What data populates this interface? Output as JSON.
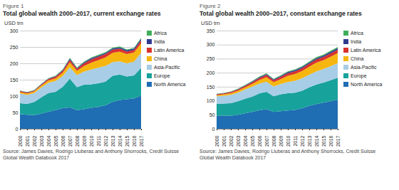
{
  "chart_data": [
    {
      "type": "area",
      "stacked": true,
      "grid": true,
      "legend": "right",
      "figure": "Figure 1",
      "title": "Total global wealth 2000–2017, current exchange rates",
      "y_label": "USD trn",
      "source": "Source: James Davies, Rodrigo Lluberas and Anthony Shorrocks, Credit Suisse Global Wealth Databook 2017",
      "x": [
        2000,
        2001,
        2002,
        2003,
        2004,
        2005,
        2006,
        2007,
        2008,
        2009,
        2010,
        2011,
        2012,
        2013,
        2014,
        2015,
        2016,
        2017
      ],
      "xlim": [
        2000,
        2017
      ],
      "xticks": [
        2000,
        2001,
        2002,
        2003,
        2004,
        2005,
        2006,
        2007,
        2008,
        2009,
        2010,
        2011,
        2012,
        2013,
        2014,
        2015,
        2016,
        2017
      ],
      "ylim": [
        0,
        300
      ],
      "yticks": [
        0,
        50,
        100,
        150,
        200,
        250,
        300
      ],
      "series": [
        {
          "name": "North America",
          "color": "#1f6db3",
          "values": [
            45,
            43,
            42,
            46,
            52,
            57,
            63,
            65,
            57,
            60,
            64,
            67,
            72,
            82,
            88,
            90,
            93,
            101
          ]
        },
        {
          "name": "Europe",
          "color": "#18a29c",
          "values": [
            33,
            33,
            40,
            50,
            57,
            56,
            65,
            88,
            70,
            75,
            72,
            72,
            72,
            80,
            78,
            70,
            70,
            85
          ]
        },
        {
          "name": "Asia-Pacific",
          "color": "#a8cde6",
          "values": [
            30,
            27,
            27,
            30,
            32,
            33,
            33,
            35,
            37,
            40,
            45,
            48,
            48,
            42,
            40,
            40,
            42,
            46
          ]
        },
        {
          "name": "China",
          "color": "#f6b60f",
          "values": [
            4,
            4.5,
            5,
            6,
            7,
            8,
            10,
            15,
            13,
            17,
            21,
            23,
            26,
            28,
            30,
            28,
            28,
            29
          ]
        },
        {
          "name": "Latin America",
          "color": "#d8322c",
          "values": [
            3,
            3,
            2.5,
            3,
            4,
            5,
            6,
            8,
            6,
            8,
            10,
            10,
            10,
            10,
            9,
            8,
            8,
            9
          ]
        },
        {
          "name": "India",
          "color": "#2f3a8f",
          "values": [
            1,
            1,
            1,
            1.5,
            1.5,
            2,
            2.5,
            3.5,
            2.5,
            3,
            3.5,
            3.5,
            3.5,
            3.5,
            4,
            4,
            4,
            5
          ]
        },
        {
          "name": "Africa",
          "color": "#3fae5a",
          "values": [
            1,
            1,
            1,
            1.2,
            1.5,
            1.7,
            2,
            2.3,
            2,
            2.2,
            2.5,
            2.5,
            2.5,
            2.5,
            2.5,
            2.3,
            2.3,
            2.5
          ]
        }
      ]
    },
    {
      "type": "area",
      "stacked": true,
      "grid": true,
      "legend": "right",
      "figure": "Figure 2",
      "title": "Total global wealth 2000–2017, constant exchange rates",
      "y_label": "USD trn",
      "source": "Source: James Davies, Rodrigo Lluberas and Anthony Shorrocks, Credit Suisse Global Wealth Databook 2017",
      "x": [
        2000,
        2001,
        2002,
        2003,
        2004,
        2005,
        2006,
        2007,
        2008,
        2009,
        2010,
        2011,
        2012,
        2013,
        2014,
        2015,
        2016,
        2017
      ],
      "xlim": [
        2000,
        2017
      ],
      "xticks": [
        2000,
        2001,
        2002,
        2003,
        2004,
        2005,
        2006,
        2007,
        2008,
        2009,
        2010,
        2011,
        2012,
        2013,
        2014,
        2015,
        2016,
        2017
      ],
      "ylim": [
        0,
        350
      ],
      "yticks": [
        0,
        50,
        100,
        150,
        200,
        250,
        300,
        350
      ],
      "series": [
        {
          "name": "North America",
          "color": "#1f6db3",
          "values": [
            47,
            47,
            46,
            50,
            55,
            60,
            66,
            70,
            60,
            63,
            65,
            67,
            73,
            82,
            88,
            93,
            98,
            104
          ]
        },
        {
          "name": "Europe",
          "color": "#18a29c",
          "values": [
            42,
            43,
            45,
            48,
            52,
            55,
            60,
            62,
            56,
            60,
            62,
            62,
            63,
            66,
            70,
            72,
            75,
            78
          ]
        },
        {
          "name": "Asia-Pacific",
          "color": "#a8cde6",
          "values": [
            27,
            28,
            30,
            31,
            33,
            35,
            35,
            36,
            35,
            37,
            40,
            42,
            44,
            45,
            47,
            48,
            50,
            52
          ]
        },
        {
          "name": "China",
          "color": "#f6b60f",
          "values": [
            4,
            5,
            6,
            7,
            8,
            10,
            13,
            16,
            15,
            17,
            22,
            24,
            26,
            28,
            31,
            32,
            34,
            36
          ]
        },
        {
          "name": "Latin America",
          "color": "#d8322c",
          "values": [
            3,
            3,
            4,
            4,
            5,
            6,
            7,
            8,
            7,
            8,
            9,
            10,
            10,
            11,
            11,
            11,
            12,
            12
          ]
        },
        {
          "name": "India",
          "color": "#2f3a8f",
          "values": [
            1,
            1,
            1,
            1.5,
            2,
            2.5,
            3,
            3.5,
            3,
            3.5,
            4,
            4,
            4.5,
            4.5,
            5,
            5,
            5.5,
            6
          ]
        },
        {
          "name": "Africa",
          "color": "#3fae5a",
          "values": [
            1,
            1,
            1.2,
            1.5,
            1.8,
            2,
            2.2,
            2.5,
            2.3,
            2.5,
            2.8,
            3,
            3,
            3.2,
            3.4,
            3.5,
            3.6,
            3.8
          ]
        }
      ]
    }
  ]
}
